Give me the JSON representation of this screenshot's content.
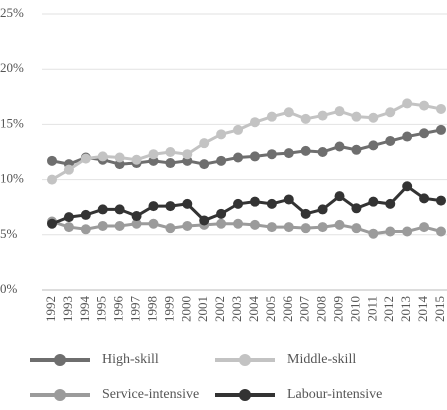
{
  "chart_data": {
    "type": "line",
    "categories": [
      "1992",
      "1993",
      "1994",
      "1995",
      "1996",
      "1997",
      "1998",
      "1999",
      "2000",
      "2001",
      "2002",
      "2003",
      "2004",
      "2005",
      "2006",
      "2007",
      "2008",
      "2009",
      "2010",
      "2011",
      "2012",
      "2013",
      "2014",
      "2015"
    ],
    "series": [
      {
        "name": "High-skill",
        "color": "#6e6e6e",
        "values": [
          11.7,
          11.4,
          12.0,
          11.8,
          11.4,
          11.5,
          11.7,
          11.5,
          11.7,
          11.4,
          11.7,
          12.0,
          12.1,
          12.3,
          12.4,
          12.6,
          12.5,
          13.0,
          12.7,
          13.1,
          13.5,
          13.9,
          14.2,
          14.5
        ]
      },
      {
        "name": "Middle-skill",
        "color": "#c3c3c3",
        "values": [
          10.0,
          10.9,
          11.9,
          12.1,
          12.0,
          11.8,
          12.3,
          12.5,
          12.3,
          13.3,
          14.1,
          14.5,
          15.2,
          15.7,
          16.1,
          15.5,
          15.8,
          16.2,
          15.7,
          15.6,
          16.1,
          16.9,
          16.7,
          16.4
        ]
      },
      {
        "name": "Service-intensive",
        "color": "#9b9b9b",
        "values": [
          6.2,
          5.7,
          5.5,
          5.8,
          5.8,
          6.0,
          6.0,
          5.6,
          5.8,
          5.9,
          6.0,
          6.0,
          5.9,
          5.7,
          5.7,
          5.6,
          5.7,
          5.9,
          5.6,
          5.1,
          5.3,
          5.3,
          5.7,
          5.3
        ]
      },
      {
        "name": "Labour-intensive",
        "color": "#333333",
        "values": [
          6.0,
          6.6,
          6.8,
          7.3,
          7.3,
          6.7,
          7.6,
          7.6,
          7.8,
          6.3,
          6.9,
          7.8,
          8.0,
          7.8,
          8.2,
          6.9,
          7.3,
          8.5,
          7.4,
          8.0,
          7.8,
          9.4,
          8.3,
          8.1
        ]
      }
    ],
    "ylim": [
      0,
      25
    ],
    "yticks": [
      {
        "value": 0,
        "label": "0%"
      },
      {
        "value": 5,
        "label": "5%"
      },
      {
        "value": 10,
        "label": "10%"
      },
      {
        "value": 15,
        "label": "15%"
      },
      {
        "value": 20,
        "label": "20%"
      },
      {
        "value": 25,
        "label": "25%"
      }
    ],
    "grid": true
  }
}
